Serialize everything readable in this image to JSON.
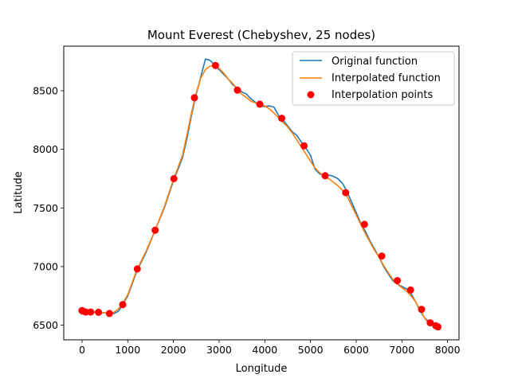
{
  "chart_data": {
    "type": "line",
    "title": "Mount Everest (Chebyshev, 25 nodes)",
    "xlabel": "Longitude",
    "ylabel": "Latitude",
    "xlim": [
      -400,
      8250
    ],
    "ylim": [
      6375,
      8880
    ],
    "xticks": [
      0,
      1000,
      2000,
      3000,
      4000,
      5000,
      6000,
      7000,
      8000
    ],
    "yticks": [
      6500,
      7000,
      7500,
      8000,
      8500
    ],
    "legend_position": "top-right",
    "grid": false,
    "series": [
      {
        "name": "Original function",
        "color": "#1f77b4",
        "x": [
          0,
          100,
          200,
          300,
          400,
          500,
          600,
          700,
          800,
          900,
          1000,
          1200,
          1400,
          1600,
          1800,
          2000,
          2200,
          2300,
          2400,
          2500,
          2600,
          2700,
          2800,
          2900,
          3000,
          3100,
          3200,
          3300,
          3400,
          3500,
          3600,
          3700,
          3800,
          3900,
          4000,
          4100,
          4200,
          4300,
          4400,
          4500,
          4600,
          4700,
          4800,
          4900,
          5000,
          5100,
          5200,
          5300,
          5400,
          5500,
          5600,
          5700,
          5800,
          5900,
          6000,
          6100,
          6200,
          6300,
          6400,
          6500,
          6600,
          6700,
          6800,
          6900,
          7000,
          7100,
          7200,
          7300,
          7400,
          7500,
          7600,
          7700,
          7790
        ],
        "y": [
          6620,
          6615,
          6612,
          6610,
          6608,
          6605,
          6600,
          6600,
          6620,
          6680,
          6750,
          6960,
          7120,
          7310,
          7500,
          7730,
          7930,
          8100,
          8300,
          8470,
          8620,
          8770,
          8760,
          8720,
          8680,
          8640,
          8600,
          8550,
          8520,
          8490,
          8470,
          8430,
          8400,
          8370,
          8365,
          8370,
          8360,
          8290,
          8250,
          8200,
          8150,
          8120,
          8060,
          8010,
          7950,
          7830,
          7790,
          7780,
          7780,
          7770,
          7750,
          7710,
          7640,
          7550,
          7460,
          7370,
          7300,
          7220,
          7150,
          7080,
          7000,
          6940,
          6880,
          6850,
          6830,
          6810,
          6770,
          6700,
          6620,
          6560,
          6530,
          6510,
          6490
        ]
      },
      {
        "name": "Interpolated function",
        "color": "#ff7f0e",
        "x": [
          0,
          100,
          200,
          300,
          400,
          500,
          600,
          700,
          800,
          900,
          1000,
          1200,
          1400,
          1600,
          1800,
          2000,
          2200,
          2300,
          2400,
          2500,
          2600,
          2700,
          2800,
          2900,
          3000,
          3100,
          3200,
          3300,
          3400,
          3500,
          3600,
          3700,
          3800,
          3900,
          4000,
          4100,
          4200,
          4300,
          4400,
          4500,
          4600,
          4700,
          4800,
          4900,
          5000,
          5100,
          5200,
          5300,
          5400,
          5500,
          5600,
          5700,
          5800,
          5900,
          6000,
          6100,
          6200,
          6300,
          6400,
          6500,
          6600,
          6700,
          6800,
          6900,
          7000,
          7100,
          7200,
          7300,
          7400,
          7500,
          7600,
          7700,
          7790
        ],
        "y": [
          6625,
          6615,
          6615,
          6612,
          6610,
          6605,
          6598,
          6610,
          6640,
          6690,
          6760,
          6970,
          7130,
          7310,
          7510,
          7740,
          7950,
          8130,
          8320,
          8480,
          8610,
          8680,
          8710,
          8715,
          8690,
          8650,
          8600,
          8560,
          8510,
          8470,
          8440,
          8410,
          8395,
          8380,
          8370,
          8345,
          8310,
          8270,
          8230,
          8190,
          8140,
          8080,
          8020,
          7960,
          7900,
          7840,
          7800,
          7770,
          7750,
          7720,
          7690,
          7650,
          7600,
          7520,
          7440,
          7360,
          7280,
          7210,
          7140,
          7080,
          7010,
          6950,
          6890,
          6850,
          6820,
          6790,
          6750,
          6700,
          6630,
          6560,
          6510,
          6495,
          6480
        ]
      }
    ],
    "scatter": {
      "name": "Interpolation points",
      "color": "#ff0000",
      "x": [
        0,
        20,
        80,
        190,
        360,
        600,
        890,
        1210,
        1600,
        2010,
        2460,
        2920,
        3400,
        3890,
        4370,
        4860,
        5320,
        5770,
        6180,
        6560,
        6900,
        7190,
        7430,
        7620,
        7740,
        7790
      ],
      "y": [
        6625,
        6620,
        6612,
        6612,
        6610,
        6600,
        6675,
        6980,
        7310,
        7750,
        8440,
        8715,
        8505,
        8385,
        8265,
        8030,
        7775,
        7630,
        7360,
        7090,
        6880,
        6800,
        6635,
        6520,
        6495,
        6485
      ]
    }
  }
}
